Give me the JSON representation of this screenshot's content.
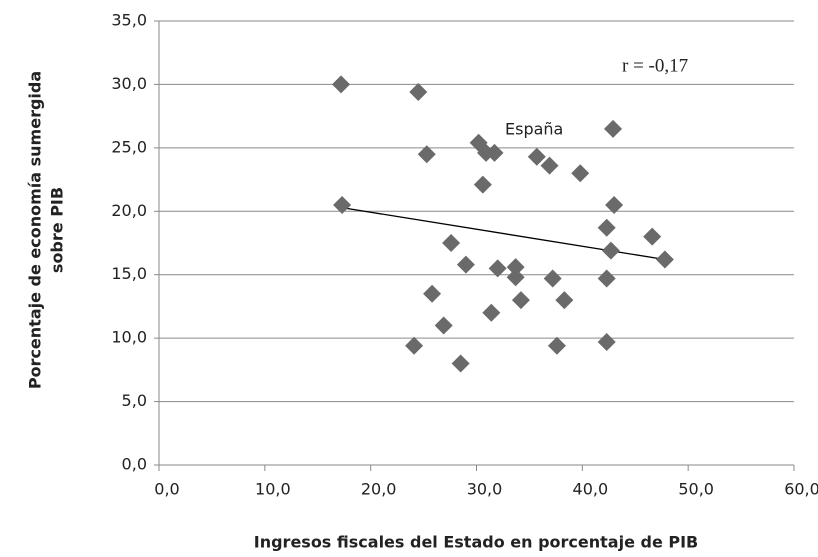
{
  "chart_data": {
    "type": "scatter",
    "xlabel": "Ingresos fiscales del Estado en porcentaje de PIB",
    "ylabel": [
      "Porcentaje de economía sumergida",
      "sobre PIB"
    ],
    "annotations": [
      "España",
      "r = -0,17"
    ],
    "series": [
      {
        "color": "#6a6a6a",
        "x": [
          17.2,
          24.5,
          17.3,
          25.3,
          30.2,
          30.9,
          31.7,
          30.6,
          35.7,
          36.9,
          39.8,
          42.9,
          43.0,
          42.3,
          42.7,
          46.6,
          47.8,
          27.6,
          29.0,
          32.0,
          33.7,
          33.7,
          34.2,
          37.2,
          38.3,
          42.3,
          25.8,
          26.9,
          31.4,
          24.1,
          28.5,
          37.6,
          42.3
        ],
        "values": [
          30.0,
          29.4,
          20.5,
          24.5,
          25.4,
          24.6,
          24.6,
          22.1,
          24.3,
          23.6,
          23.0,
          26.5,
          20.5,
          18.7,
          16.9,
          18.0,
          16.2,
          17.5,
          15.8,
          15.5,
          15.6,
          14.8,
          13.0,
          14.7,
          13.0,
          14.7,
          13.5,
          11.0,
          12.0,
          9.4,
          8.0,
          9.4,
          9.7
        ]
      }
    ],
    "trendline": {
      "x": [
        17.2,
        47.8
      ],
      "values": [
        20.3,
        16.2
      ],
      "color": "#000000"
    },
    "xlim": [
      0,
      60
    ],
    "ylim": [
      0,
      35
    ],
    "xticks": [
      {
        "value": 0,
        "label": "0,0"
      },
      {
        "value": 10,
        "label": "10,0"
      },
      {
        "value": 20,
        "label": "20,0"
      },
      {
        "value": 30,
        "label": "30,0"
      },
      {
        "value": 40,
        "label": "40,0"
      },
      {
        "value": 50,
        "label": "50,0"
      },
      {
        "value": 60,
        "label": "60,0"
      }
    ],
    "yticks": [
      {
        "value": 0,
        "label": "0,0"
      },
      {
        "value": 5,
        "label": "5,0"
      },
      {
        "value": 10,
        "label": "10,0"
      },
      {
        "value": 15,
        "label": "15,0"
      },
      {
        "value": 20,
        "label": "20,0"
      },
      {
        "value": 25,
        "label": "25,0"
      },
      {
        "value": 30,
        "label": "30,0"
      },
      {
        "value": 35,
        "label": "35,0"
      }
    ],
    "grid": true
  }
}
